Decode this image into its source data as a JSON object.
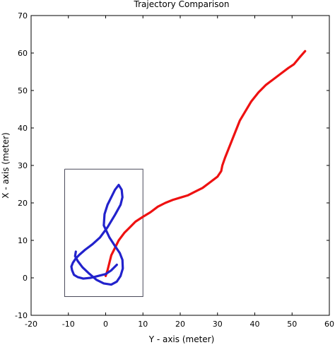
{
  "chart_data": {
    "type": "line",
    "title": "Trajectory Comparison",
    "xlabel": "Y - axis (meter)",
    "ylabel": "X - axis (meter)",
    "xlim": [
      -20,
      60
    ],
    "ylim": [
      -10,
      70
    ],
    "xticks": [
      -20,
      -10,
      0,
      10,
      20,
      30,
      40,
      50,
      60
    ],
    "yticks": [
      -10,
      0,
      10,
      20,
      30,
      40,
      50,
      60,
      70
    ],
    "grid": false,
    "series": [
      {
        "color": "#ee1111",
        "x": [
          0,
          0.5,
          1,
          1.5,
          2.5,
          3.5,
          5,
          6.5,
          8,
          10,
          12,
          14,
          16,
          18,
          20,
          22,
          24,
          26,
          28,
          30,
          31,
          31.3,
          32,
          33,
          34,
          35,
          36,
          37.5,
          39,
          41,
          43,
          45,
          47,
          49,
          50.5,
          52,
          53.5
        ],
        "y": [
          0.5,
          2,
          4,
          6,
          8,
          10,
          12,
          13.5,
          15,
          16.3,
          17.5,
          19,
          20,
          20.8,
          21.4,
          22,
          23,
          24,
          25.5,
          27,
          28.5,
          30,
          32,
          34.5,
          37,
          39.5,
          42,
          44.5,
          47,
          49.5,
          51.5,
          53,
          54.5,
          56,
          57,
          58.8,
          60.5
        ]
      },
      {
        "color": "#2222cc",
        "x": [
          -8,
          -8.2,
          -7.5,
          -6.2,
          -4.5,
          -2.5,
          -0.5,
          1.5,
          3,
          4,
          4.6,
          4.5,
          3.8,
          2.5,
          1,
          -0.5,
          -0.3,
          0.5,
          1.5,
          2.5,
          3.5,
          4.3,
          4.5,
          4,
          2.5,
          0.5,
          -1.5,
          -3.5,
          -5.5,
          -7,
          -8,
          -8.8,
          -9.2,
          -9,
          -8.5,
          -7.5,
          -6,
          -4,
          -2,
          0,
          1.5,
          3
        ],
        "y": [
          7,
          5.8,
          4.5,
          2.8,
          1.2,
          -0.5,
          -1.5,
          -1.8,
          -1,
          0.5,
          2.5,
          4.8,
          6.6,
          8.5,
          10.8,
          14,
          17,
          19.5,
          21.5,
          23.5,
          24.8,
          23.5,
          21.5,
          19.5,
          16.8,
          13.5,
          10.8,
          9,
          7.5,
          6.2,
          5.2,
          4,
          3,
          2,
          0.8,
          0.2,
          -0.2,
          0,
          0.5,
          1,
          2,
          3.5
        ]
      }
    ],
    "boundary": {
      "color": "#4a4a5a",
      "x": [
        -11,
        10,
        10,
        -11,
        -11
      ],
      "y": [
        29,
        29,
        -5,
        -5,
        29
      ]
    }
  }
}
